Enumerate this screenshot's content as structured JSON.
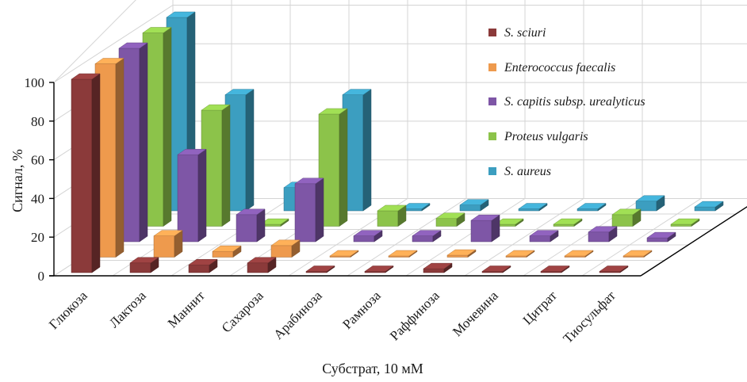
{
  "chart_data": {
    "type": "bar",
    "style": "3d-clustered-depth",
    "title": "",
    "xlabel": "Субстрат, 10 мМ",
    "ylabel": "Сигнал, %",
    "ylim": [
      0,
      100
    ],
    "yticks": [
      0,
      20,
      40,
      60,
      80,
      100
    ],
    "grid": true,
    "legend_position": "right",
    "categories": [
      "Глюкоза",
      "Лактоза",
      "Маннит",
      "Сахароза",
      "Арабиноза",
      "Рамноза",
      "Раффиноза",
      "Мочевина",
      "Цитрат",
      "Тиосульфат"
    ],
    "series": [
      {
        "name": "S. sciuri",
        "color": "#8B3A3A",
        "values": [
          100,
          5,
          4,
          5,
          0,
          0,
          2,
          0,
          0,
          0
        ]
      },
      {
        "name": "Enterococcus faecalis",
        "color": "#EE9A4D",
        "values": [
          100,
          11,
          3,
          6,
          0,
          0,
          1,
          0,
          0,
          0
        ]
      },
      {
        "name": "S. capitis subsp. urealyticus",
        "color": "#7E56A6",
        "values": [
          100,
          45,
          14,
          30,
          3,
          3,
          11,
          3,
          5,
          2
        ]
      },
      {
        "name": "Proteus vulgaris",
        "color": "#8CC34A",
        "values": [
          100,
          60,
          1,
          58,
          8,
          4,
          1,
          1,
          6,
          1
        ]
      },
      {
        "name": "S. aureus",
        "color": "#3C9EC0",
        "values": [
          100,
          60,
          12,
          60,
          1,
          3,
          1,
          1,
          5,
          2
        ]
      }
    ]
  }
}
